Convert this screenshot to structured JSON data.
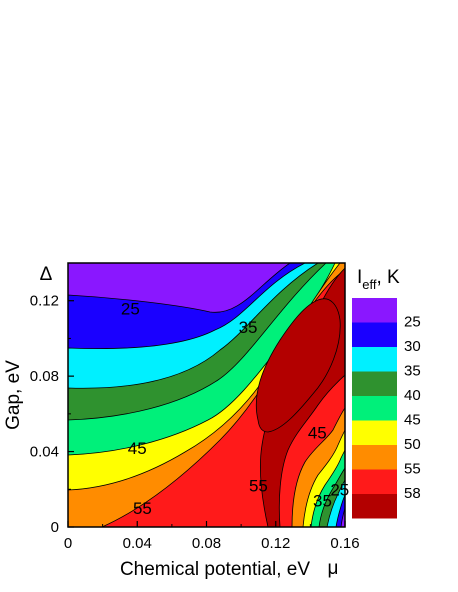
{
  "chart_data": {
    "type": "contour",
    "xlabel": "Chemical potential, eV",
    "xsymbol": "μ",
    "ylabel": "Gap, eV",
    "ysymbol": "Δ",
    "xlim": [
      0,
      0.16
    ],
    "ylim": [
      0,
      0.14
    ],
    "xticks": [
      "0",
      "0.04",
      "0.08",
      "0.12",
      "0.16"
    ],
    "yticks": [
      "0",
      "0.04",
      "0.08",
      "0.12"
    ],
    "colorbar": {
      "title_main": "I",
      "title_sub": "eff",
      "title_unit": ", K",
      "levels": [
        {
          "label": "25",
          "color": "#1a00ff"
        },
        {
          "label": "30",
          "color": "#00f0ff"
        },
        {
          "label": "35",
          "color": "#2f922f"
        },
        {
          "label": "40",
          "color": "#00f07a"
        },
        {
          "label": "45",
          "color": "#ffff00"
        },
        {
          "label": "50",
          "color": "#ff8c00"
        },
        {
          "label": "55",
          "color": "#ff1a1a"
        },
        {
          "label": "58",
          "color": "#b30000"
        }
      ],
      "top_color": "#8a17ff"
    },
    "contour_labels": [
      {
        "text": "25",
        "x": 0.036,
        "y": 0.116
      },
      {
        "text": "35",
        "x": 0.104,
        "y": 0.106
      },
      {
        "text": "45",
        "x": 0.04,
        "y": 0.042
      },
      {
        "text": "55",
        "x": 0.043,
        "y": 0.01
      },
      {
        "text": "55",
        "x": 0.11,
        "y": 0.022
      },
      {
        "text": "45",
        "x": 0.144,
        "y": 0.05
      },
      {
        "text": "35",
        "x": 0.147,
        "y": 0.014
      },
      {
        "text": "25",
        "x": 0.157,
        "y": 0.02
      }
    ]
  }
}
